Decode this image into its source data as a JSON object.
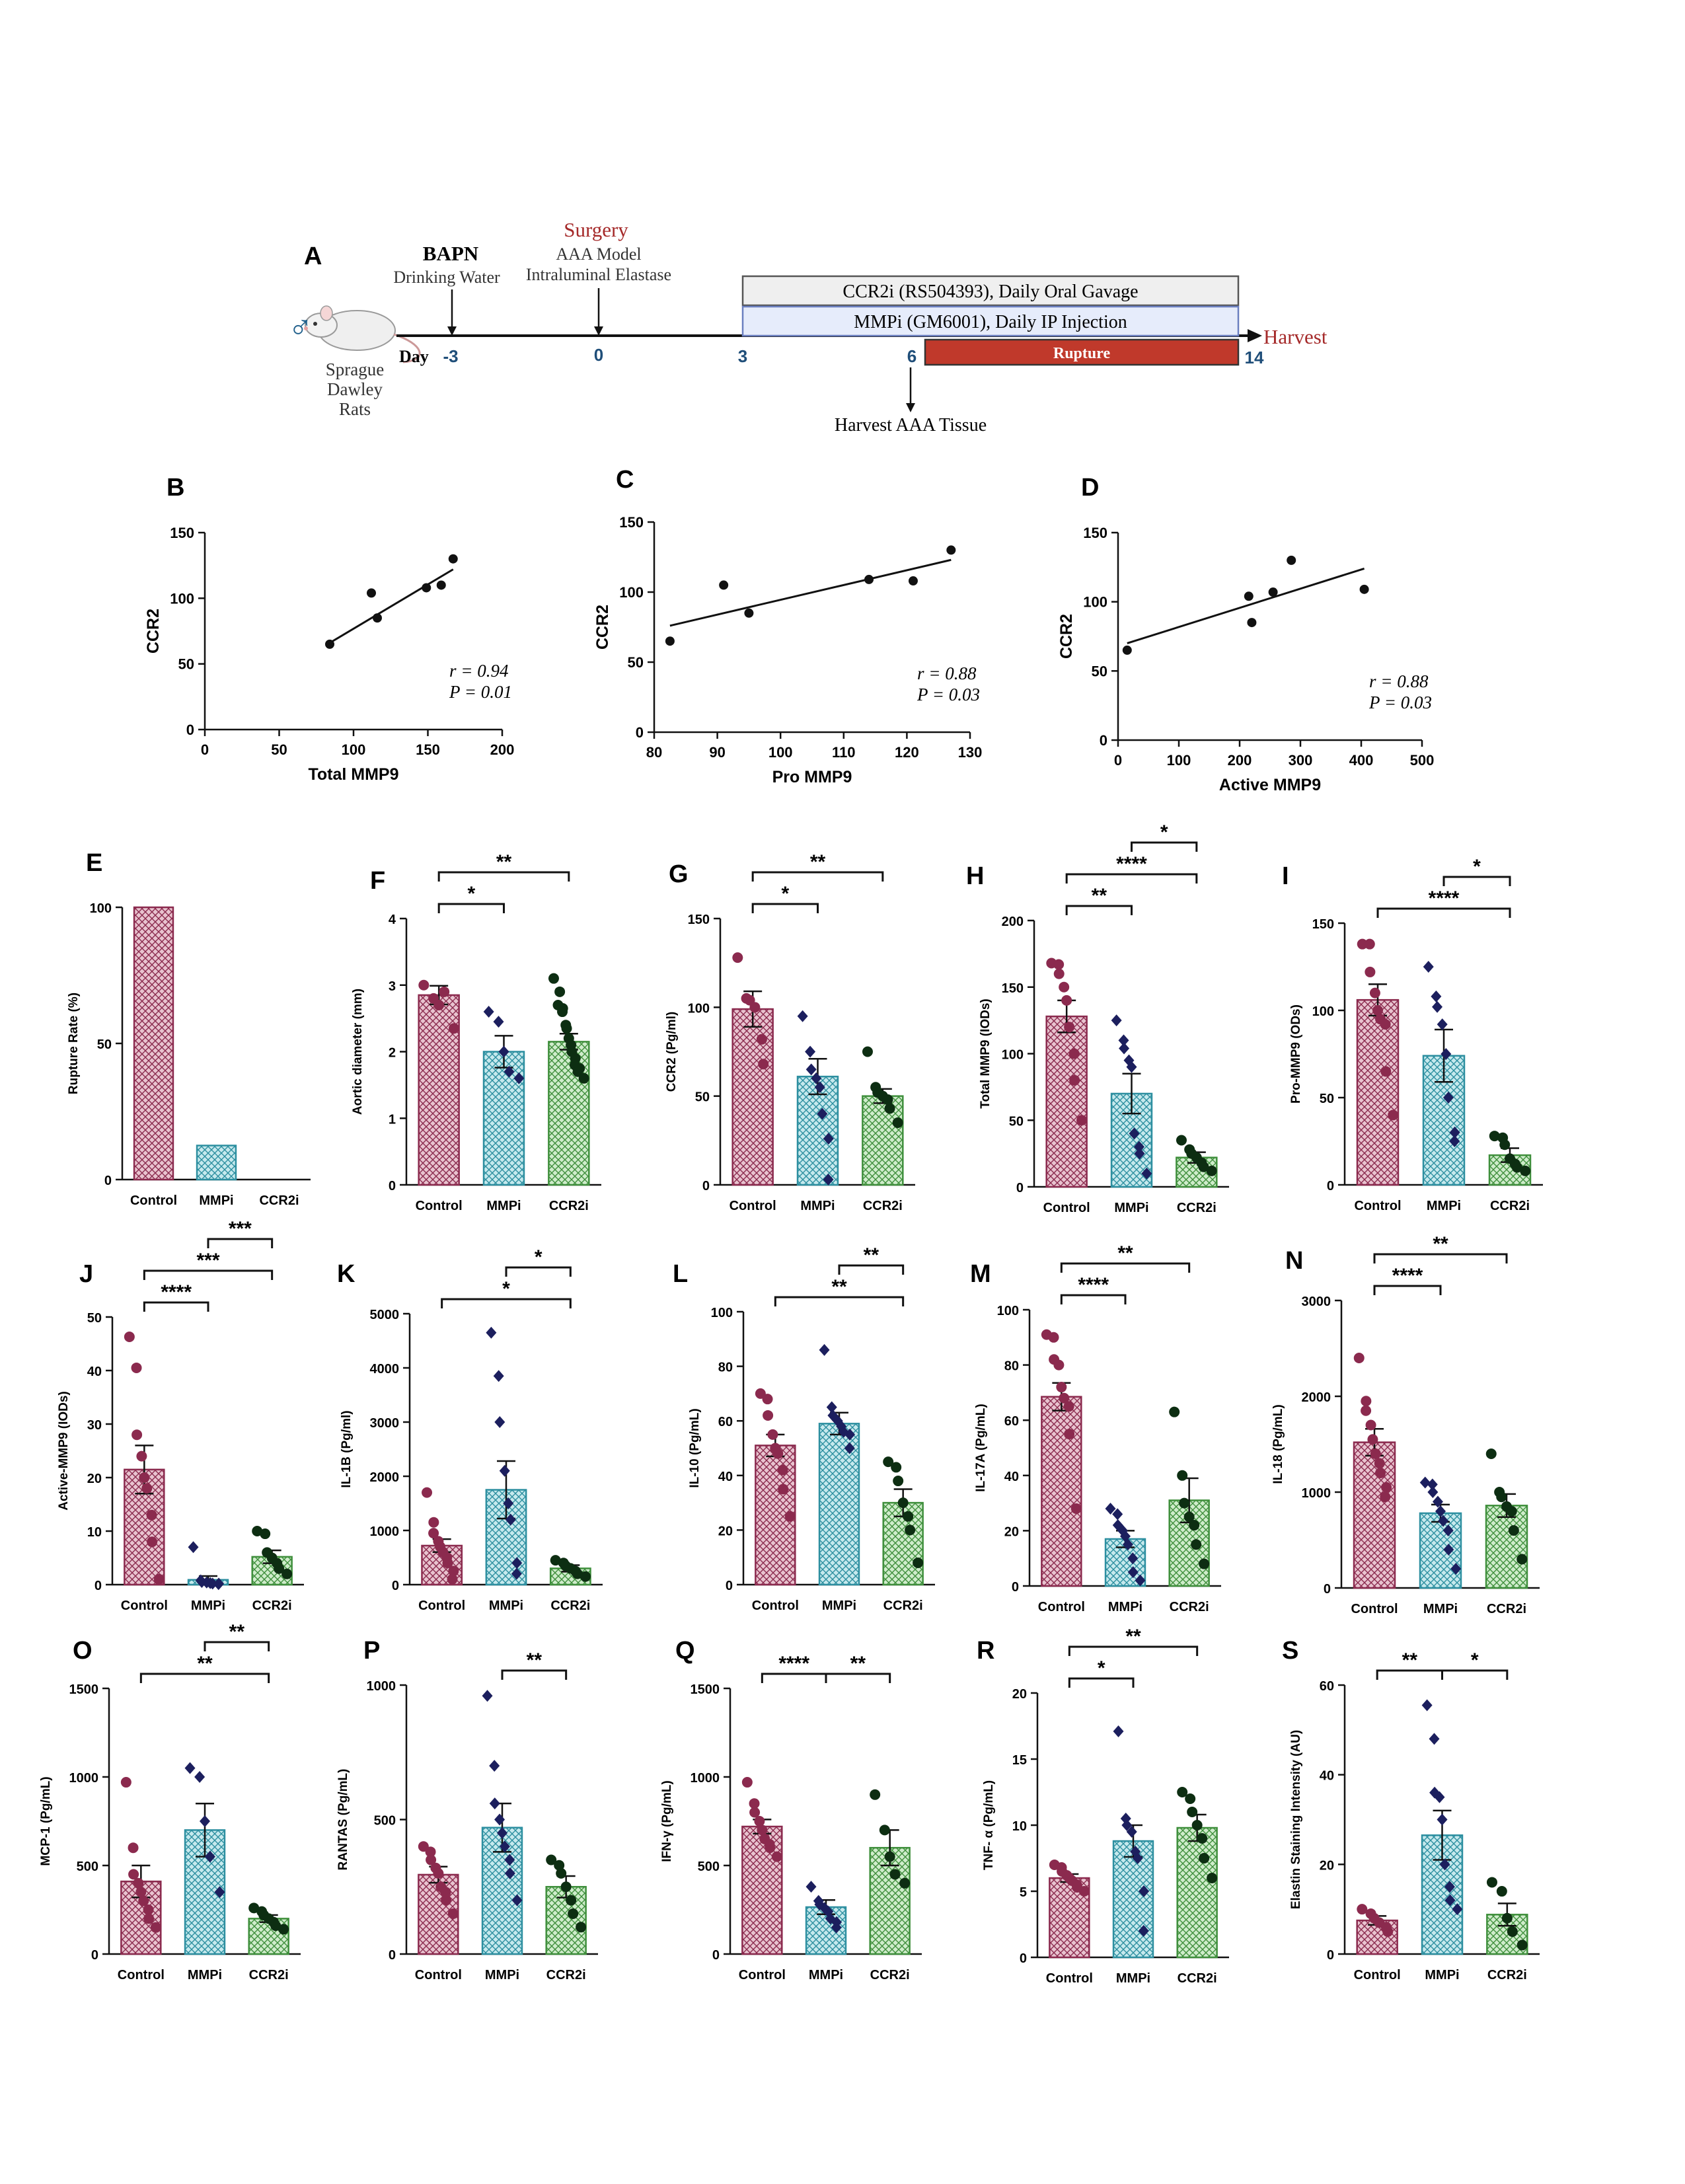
{
  "colors": {
    "control": "#8b2a4e",
    "mmpi": "#2d8fa0",
    "ccr2i": "#3f8f3c",
    "control_fill": "#e3b5c4",
    "mmpi_fill": "#b9e3e8",
    "ccr2i_fill": "#c4e7c0",
    "diamond": "#1c1f5e",
    "dot_dark": "#0d2e12",
    "accent": "#a52a2a",
    "day": "#1f4e79"
  },
  "timeline": {
    "panel": "A",
    "sex_symbol": "♂",
    "rat_label": [
      "Sprague",
      "Dawley",
      "Rats"
    ],
    "day_label": "Day",
    "bapn_title": "BAPN",
    "bapn_sub": "Drinking Water",
    "surgery_title": "Surgery",
    "surgery_sub1": "AAA Model",
    "surgery_sub2": "Intraluminal Elastase",
    "days": [
      "-3",
      "0",
      "3",
      "6",
      "14"
    ],
    "ccr2i_bar": "CCR2i (RS504393), Daily Oral Gavage",
    "mmpi_bar": "MMPi (GM6001), Daily IP Injection",
    "rupture_bar": "Rupture",
    "harvest": "Harvest",
    "harvest_tissue": "Harvest AAA Tissue"
  },
  "chart_data": [
    {
      "panel": "B",
      "type": "scatter",
      "xlabel": "Total MMP9",
      "ylabel": "CCR2",
      "xlim": [
        0,
        200
      ],
      "ylim": [
        0,
        150
      ],
      "xticks": [
        "0",
        "50",
        "100",
        "150",
        "200"
      ],
      "yticks": [
        "0",
        "50",
        "100",
        "150"
      ],
      "x": [
        84,
        112,
        116,
        149,
        159,
        167
      ],
      "y": [
        65,
        104,
        85,
        108,
        110,
        130
      ],
      "fit": [
        [
          84,
          66
        ],
        [
          167,
          122
        ]
      ],
      "r_label": "r = 0.94",
      "p_label": "P = 0.01"
    },
    {
      "panel": "C",
      "type": "scatter",
      "xlabel": "Pro MMP9",
      "ylabel": "CCR2",
      "xlim": [
        80,
        130
      ],
      "ylim": [
        0,
        150
      ],
      "xticks": [
        "80",
        "90",
        "100",
        "110",
        "120",
        "130"
      ],
      "yticks": [
        "0",
        "50",
        "100",
        "150"
      ],
      "x": [
        82.5,
        91,
        95,
        114,
        121,
        127
      ],
      "y": [
        65,
        105,
        85,
        109,
        108,
        130
      ],
      "fit": [
        [
          82.5,
          76
        ],
        [
          127,
          123
        ]
      ],
      "r_label": "r = 0.88",
      "p_label": "P = 0.03"
    },
    {
      "panel": "D",
      "type": "scatter",
      "xlabel": "Active MMP9",
      "ylabel": "CCR2",
      "xlim": [
        0,
        500
      ],
      "ylim": [
        0,
        150
      ],
      "xticks": [
        "0",
        "100",
        "200",
        "300",
        "400",
        "500"
      ],
      "yticks": [
        "0",
        "50",
        "100",
        "150"
      ],
      "x": [
        15,
        215,
        220,
        255,
        285,
        405
      ],
      "y": [
        65,
        104,
        85,
        107,
        130,
        109
      ],
      "fit": [
        [
          15,
          70
        ],
        [
          405,
          124
        ]
      ],
      "r_label": "r = 0.88",
      "p_label": "P = 0.03"
    },
    {
      "panel": "E",
      "type": "bar",
      "ylabel": "Rupture Rate (%)",
      "ylim": [
        0,
        100
      ],
      "yticks": [
        "0",
        "50",
        "100"
      ],
      "categories": [
        "Control",
        "MMPi",
        "CCR2i"
      ],
      "values": [
        100,
        12.5,
        0
      ],
      "sem": [
        0,
        0,
        0
      ],
      "points": [
        [],
        [],
        []
      ],
      "sig": []
    },
    {
      "panel": "F",
      "type": "bar",
      "ylabel": "Aortic diameter (mm)",
      "ylim": [
        0,
        4
      ],
      "yticks": [
        "0",
        "1",
        "2",
        "3",
        "4"
      ],
      "categories": [
        "Control",
        "MMPi",
        "CCR2i"
      ],
      "values": [
        2.85,
        2.0,
        2.15
      ],
      "sem": [
        0.14,
        0.24,
        0.12
      ],
      "points": [
        [
          3.0,
          2.8,
          2.7,
          2.9,
          2.35
        ],
        [
          2.6,
          2.45,
          2.0,
          1.7,
          1.6
        ],
        [
          3.1,
          2.9,
          2.7,
          2.65,
          2.6,
          2.4,
          2.35,
          2.2,
          2.1,
          2.0,
          1.9,
          1.8,
          1.75,
          1.7,
          1.6
        ]
      ],
      "sig": [
        {
          "from": 0,
          "to": 1,
          "label": "*",
          "level": 0
        },
        {
          "from": 0,
          "to": 2,
          "label": "**",
          "level": 1
        }
      ]
    },
    {
      "panel": "G",
      "type": "bar",
      "ylabel": "CCR2 (Pg/ml)",
      "ylim": [
        0,
        150
      ],
      "yticks": [
        "0",
        "50",
        "100",
        "150"
      ],
      "categories": [
        "Control",
        "MMPi",
        "CCR2i"
      ],
      "values": [
        99,
        61,
        50
      ],
      "sem": [
        10,
        10,
        4
      ],
      "points": [
        [
          128,
          105,
          104,
          100,
          82,
          68
        ],
        [
          95,
          75,
          65,
          60,
          55,
          40,
          26,
          3
        ],
        [
          75,
          55,
          52,
          50,
          48,
          43,
          35
        ]
      ],
      "sig": [
        {
          "from": 0,
          "to": 1,
          "label": "*",
          "level": 0
        },
        {
          "from": 0,
          "to": 2,
          "label": "**",
          "level": 1
        }
      ]
    },
    {
      "panel": "H",
      "type": "bar",
      "ylabel": "Total MMP9 (IODs)",
      "ylim": [
        0,
        200
      ],
      "yticks": [
        "0",
        "50",
        "100",
        "150",
        "200"
      ],
      "categories": [
        "Control",
        "MMPi",
        "CCR2i"
      ],
      "values": [
        128,
        70,
        22
      ],
      "sem": [
        12,
        15,
        4
      ],
      "points": [
        [
          168,
          167,
          160,
          150,
          140,
          120,
          100,
          80,
          50
        ],
        [
          125,
          110,
          104,
          95,
          90,
          40,
          30,
          25,
          10
        ],
        [
          35,
          28,
          25,
          22,
          18,
          15,
          12
        ]
      ],
      "sig": [
        {
          "from": 0,
          "to": 1,
          "label": "**",
          "level": 0
        },
        {
          "from": 0,
          "to": 2,
          "label": "****",
          "level": 1
        },
        {
          "from": 1,
          "to": 2,
          "label": "*",
          "level": 2
        }
      ]
    },
    {
      "panel": "I",
      "type": "bar",
      "ylabel": "Pro-MMP9 (ODs)",
      "ylim": [
        0,
        150
      ],
      "yticks": [
        "0",
        "50",
        "100",
        "150"
      ],
      "categories": [
        "Control",
        "MMPi",
        "CCR2i"
      ],
      "values": [
        106,
        74,
        17
      ],
      "sem": [
        9,
        15,
        4
      ],
      "points": [
        [
          138,
          138,
          122,
          110,
          100,
          95,
          92,
          65,
          40
        ],
        [
          125,
          108,
          102,
          92,
          75,
          50,
          30,
          25
        ],
        [
          28,
          27,
          23,
          15,
          12,
          10,
          8
        ]
      ],
      "sig": [
        {
          "from": 0,
          "to": 2,
          "label": "****",
          "level": 0
        },
        {
          "from": 1,
          "to": 2,
          "label": "*",
          "level": 1
        }
      ]
    },
    {
      "panel": "J",
      "type": "bar",
      "ylabel": "Active-MMP9 (IODs)",
      "ylim": [
        0,
        50
      ],
      "yticks": [
        "0",
        "10",
        "20",
        "30",
        "40",
        "50"
      ],
      "categories": [
        "Control",
        "MMPi",
        "CCR2i"
      ],
      "values": [
        21.5,
        0.9,
        5.2
      ],
      "sem": [
        4.5,
        0.7,
        1.2
      ],
      "points": [
        [
          46.3,
          40.5,
          28,
          24,
          20,
          18,
          13,
          8,
          1
        ],
        [
          7,
          0.8,
          0.5,
          0.4,
          0.3,
          0.2,
          0.2,
          0.1
        ],
        [
          10,
          9.5,
          6,
          5,
          4,
          3,
          2
        ]
      ],
      "sig": [
        {
          "from": 0,
          "to": 1,
          "label": "****",
          "level": 0
        },
        {
          "from": 0,
          "to": 2,
          "label": "***",
          "level": 1
        },
        {
          "from": 1,
          "to": 2,
          "label": "***",
          "level": 2
        }
      ]
    },
    {
      "panel": "K",
      "type": "bar",
      "ylabel": "IL-1B (Pg/ml)",
      "ylim": [
        0,
        5000
      ],
      "yticks": [
        "0",
        "1000",
        "2000",
        "3000",
        "4000",
        "5000"
      ],
      "categories": [
        "Control",
        "MMPi",
        "CCR2i"
      ],
      "values": [
        720,
        1750,
        300
      ],
      "sem": [
        120,
        530,
        60
      ],
      "points": [
        [
          1700,
          1150,
          950,
          800,
          700,
          600,
          500,
          400,
          250,
          100
        ],
        [
          4650,
          3850,
          3000,
          2100,
          1500,
          1200,
          400,
          200
        ],
        [
          450,
          400,
          350,
          300,
          250,
          200,
          150
        ]
      ],
      "sig": [
        {
          "from": 0,
          "to": 2,
          "label": "*",
          "level": 0
        },
        {
          "from": 1,
          "to": 2,
          "label": "*",
          "level": 1
        }
      ]
    },
    {
      "panel": "L",
      "type": "bar",
      "ylabel": "IL-10 (Pg/mL)",
      "ylim": [
        0,
        100
      ],
      "yticks": [
        "0",
        "20",
        "40",
        "60",
        "80",
        "100"
      ],
      "categories": [
        "Control",
        "MMPi",
        "CCR2i"
      ],
      "values": [
        51,
        59,
        30
      ],
      "sem": [
        4,
        4,
        5
      ],
      "points": [
        [
          70,
          68,
          62,
          55,
          50,
          48,
          42,
          35,
          25
        ],
        [
          86,
          65,
          62,
          60,
          58,
          56,
          55,
          50
        ],
        [
          45,
          43,
          38,
          30,
          25,
          20,
          8
        ]
      ],
      "sig": [
        {
          "from": 0,
          "to": 2,
          "label": "**",
          "level": 0
        },
        {
          "from": 1,
          "to": 2,
          "label": "**",
          "level": 1
        }
      ]
    },
    {
      "panel": "M",
      "type": "bar",
      "ylabel": "IL-17A (Pg/mL)",
      "ylim": [
        0,
        100
      ],
      "yticks": [
        "0",
        "20",
        "40",
        "60",
        "80",
        "100"
      ],
      "categories": [
        "Control",
        "MMPi",
        "CCR2i"
      ],
      "values": [
        68.5,
        17,
        31
      ],
      "sem": [
        5,
        3,
        8
      ],
      "points": [
        [
          91,
          90,
          82,
          80,
          72,
          68,
          65,
          55,
          28
        ],
        [
          28,
          26,
          22,
          20,
          18,
          15,
          10,
          5,
          2
        ],
        [
          63,
          40,
          30,
          25,
          22,
          15,
          8
        ]
      ],
      "sig": [
        {
          "from": 0,
          "to": 1,
          "label": "****",
          "level": 0
        },
        {
          "from": 0,
          "to": 2,
          "label": "**",
          "level": 1
        }
      ]
    },
    {
      "panel": "N",
      "type": "bar",
      "ylabel": "IL-18 (Pg/mL)",
      "ylim": [
        0,
        3000
      ],
      "yticks": [
        "0",
        "1000",
        "2000",
        "3000"
      ],
      "categories": [
        "Control",
        "MMPi",
        "CCR2i"
      ],
      "values": [
        1520,
        780,
        860
      ],
      "sem": [
        140,
        90,
        120
      ],
      "points": [
        [
          2400,
          1950,
          1850,
          1700,
          1550,
          1400,
          1300,
          1200,
          1050,
          950
        ],
        [
          1100,
          1080,
          1000,
          900,
          800,
          700,
          600,
          400,
          200
        ],
        [
          1400,
          1000,
          950,
          850,
          800,
          600,
          300
        ]
      ],
      "sig": [
        {
          "from": 0,
          "to": 1,
          "label": "****",
          "level": 0
        },
        {
          "from": 0,
          "to": 2,
          "label": "**",
          "level": 1
        }
      ]
    },
    {
      "panel": "O",
      "type": "bar",
      "ylabel": "MCP-1 (Pg/mL)",
      "ylim": [
        0,
        1500
      ],
      "yticks": [
        "0",
        "500",
        "1000",
        "1500"
      ],
      "categories": [
        "Control",
        "MMPi",
        "CCR2i"
      ],
      "values": [
        410,
        700,
        200
      ],
      "sem": [
        90,
        150,
        20
      ],
      "points": [
        [
          970,
          600,
          450,
          400,
          350,
          300,
          250,
          200,
          150
        ],
        [
          1050,
          1000,
          750,
          550,
          350
        ],
        [
          260,
          240,
          220,
          200,
          180,
          160,
          140
        ]
      ],
      "sig": [
        {
          "from": 0,
          "to": 2,
          "label": "**",
          "level": 0
        },
        {
          "from": 1,
          "to": 2,
          "label": "**",
          "level": 1
        }
      ]
    },
    {
      "panel": "P",
      "type": "bar",
      "ylabel": "RANTAS (Pg/mL)",
      "ylim": [
        0,
        1000
      ],
      "yticks": [
        "0",
        "500",
        "1000"
      ],
      "categories": [
        "Control",
        "MMPi",
        "CCR2i"
      ],
      "values": [
        295,
        470,
        250
      ],
      "sem": [
        30,
        90,
        40
      ],
      "points": [
        [
          400,
          380,
          350,
          320,
          300,
          250,
          230,
          200,
          150
        ],
        [
          960,
          700,
          560,
          500,
          450,
          400,
          350,
          300,
          200
        ],
        [
          350,
          330,
          300,
          250,
          200,
          150,
          100
        ]
      ],
      "sig": [
        {
          "from": 1,
          "to": 2,
          "label": "**",
          "level": 0
        }
      ]
    },
    {
      "panel": "Q",
      "type": "bar",
      "ylabel": "IFN-γ (Pg/mL)",
      "ylim": [
        0,
        1500
      ],
      "yticks": [
        "0",
        "500",
        "1000",
        "1500"
      ],
      "categories": [
        "Control",
        "MMPi",
        "CCR2i"
      ],
      "values": [
        720,
        265,
        600
      ],
      "sem": [
        40,
        40,
        100
      ],
      "points": [
        [
          970,
          850,
          800,
          750,
          700,
          650,
          620,
          600,
          550
        ],
        [
          380,
          300,
          280,
          260,
          240,
          200,
          180,
          150
        ],
        [
          900,
          700,
          550,
          450,
          400
        ]
      ],
      "sig": [
        {
          "from": 0,
          "to": 1,
          "label": "****",
          "level": 0
        },
        {
          "from": 1,
          "to": 2,
          "label": "**",
          "level": 0
        }
      ]
    },
    {
      "panel": "R",
      "type": "bar",
      "ylabel": "TNF- α (Pg/mL)",
      "ylim": [
        0,
        20
      ],
      "yticks": [
        "0",
        "5",
        "10",
        "15",
        "20"
      ],
      "categories": [
        "Control",
        "MMPi",
        "CCR2i"
      ],
      "values": [
        6,
        8.8,
        9.8
      ],
      "sem": [
        0.3,
        1.2,
        1.0
      ],
      "points": [
        [
          7,
          6.8,
          6.5,
          6.2,
          6,
          5.8,
          5.5,
          5.3,
          5
        ],
        [
          17.1,
          10.5,
          10,
          9.5,
          8,
          7.5,
          5,
          2
        ],
        [
          12.5,
          12,
          11,
          10,
          9,
          7.5,
          6
        ]
      ],
      "sig": [
        {
          "from": 0,
          "to": 1,
          "label": "*",
          "level": 0
        },
        {
          "from": 0,
          "to": 2,
          "label": "**",
          "level": 1
        }
      ]
    },
    {
      "panel": "S",
      "type": "bar",
      "ylabel": "Elastin Staining Intensity (AU)",
      "ylim": [
        0,
        60
      ],
      "yticks": [
        "0",
        "20",
        "40",
        "60"
      ],
      "categories": [
        "Control",
        "MMPi",
        "CCR2i"
      ],
      "values": [
        7.5,
        26.5,
        8.8
      ],
      "sem": [
        1,
        5.5,
        2.5
      ],
      "points": [
        [
          10,
          9,
          8,
          7,
          6,
          5
        ],
        [
          55.5,
          48,
          36,
          35,
          30,
          20,
          15,
          12,
          10
        ],
        [
          16,
          14,
          8,
          5,
          2
        ]
      ],
      "sig": [
        {
          "from": 0,
          "to": 1,
          "label": "**",
          "level": 0
        },
        {
          "from": 1,
          "to": 2,
          "label": "*",
          "level": 0
        }
      ]
    }
  ]
}
